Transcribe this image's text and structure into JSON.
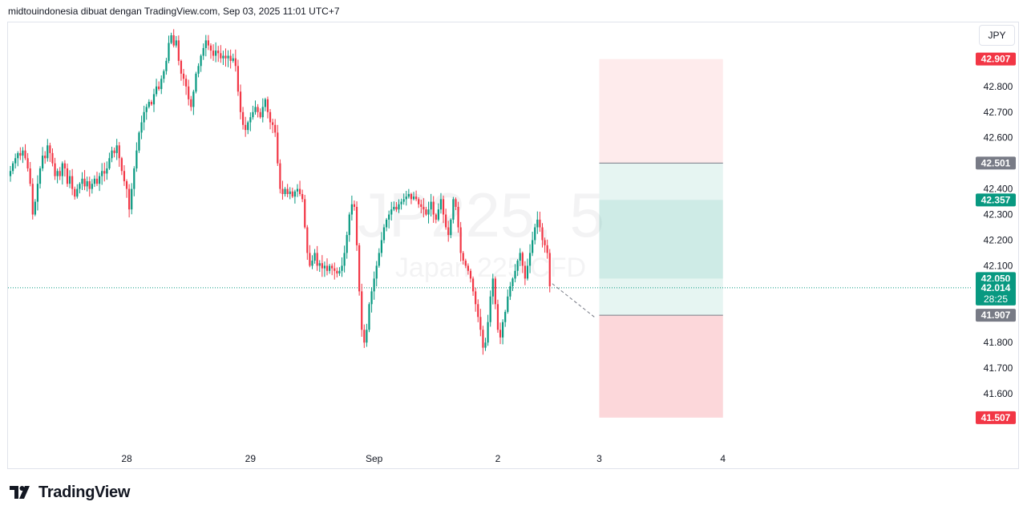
{
  "header": {
    "text": "midtouindonesia dibuat dengan TradingView.com, Sep 03, 2025 11:01 UTC+7"
  },
  "currency": "JPY",
  "watermark": {
    "symbol": "JP225, 5",
    "description": "Japan 225 CFD"
  },
  "brand": {
    "name": "TradingView"
  },
  "colors": {
    "up": "#089981",
    "down": "#f23645",
    "stop_zone": "#f23645",
    "target_zone": "#089981",
    "label_dark": "#787b86"
  },
  "chart_data": {
    "type": "candlestick",
    "title": "",
    "xlabel": "",
    "ylabel": "",
    "ylim": [
      41.4,
      43.05
    ],
    "y_ticks": [
      41.6,
      41.7,
      41.8,
      42.1,
      42.2,
      42.3,
      42.4,
      42.6,
      42.7,
      42.8
    ],
    "y_tick_labels": [
      "41.600",
      "41.700",
      "41.800",
      "42.100",
      "42.200",
      "42.300",
      "42.400",
      "42.600",
      "42.700",
      "42.800"
    ],
    "x_ticks": [
      {
        "label": "28",
        "index": 47
      },
      {
        "label": "29",
        "index": 97
      },
      {
        "label": "Sep",
        "index": 147
      },
      {
        "label": "2",
        "index": 197
      },
      {
        "label": "3",
        "index": 238
      },
      {
        "label": "4",
        "index": 288
      }
    ],
    "close_series": [
      42.47,
      42.5,
      42.52,
      42.54,
      42.53,
      42.55,
      42.52,
      42.48,
      42.42,
      42.3,
      42.35,
      42.42,
      42.48,
      42.53,
      42.52,
      42.57,
      42.54,
      42.5,
      42.45,
      42.47,
      42.45,
      42.5,
      42.48,
      42.42,
      42.45,
      42.4,
      42.37,
      42.4,
      42.42,
      42.44,
      42.41,
      42.43,
      42.4,
      42.42,
      42.44,
      42.42,
      42.45,
      42.47,
      42.46,
      42.48,
      42.52,
      42.55,
      42.54,
      42.57,
      42.52,
      42.47,
      42.43,
      42.4,
      42.32,
      42.4,
      42.48,
      42.55,
      42.62,
      42.66,
      42.7,
      42.72,
      42.74,
      42.73,
      42.77,
      42.8,
      42.79,
      42.83,
      42.86,
      42.9,
      42.97,
      43.0,
      42.96,
      42.98,
      42.9,
      42.85,
      42.83,
      42.8,
      42.75,
      42.72,
      42.78,
      42.85,
      42.88,
      42.92,
      42.95,
      42.98,
      42.96,
      42.94,
      42.92,
      42.94,
      42.93,
      42.91,
      42.92,
      42.91,
      42.92,
      42.9,
      42.91,
      42.88,
      42.78,
      42.7,
      42.65,
      42.63,
      42.66,
      42.68,
      42.7,
      42.72,
      42.7,
      42.68,
      42.72,
      42.75,
      42.7,
      42.66,
      42.65,
      42.62,
      42.5,
      42.4,
      42.38,
      42.4,
      42.38,
      42.39,
      42.37,
      42.39,
      42.4,
      42.38,
      42.36,
      42.25,
      42.15,
      42.1,
      42.12,
      42.15,
      42.1,
      42.11,
      42.09,
      42.1,
      42.08,
      42.1,
      42.09,
      42.08,
      42.07,
      42.08,
      42.1,
      42.15,
      42.22,
      42.3,
      42.34,
      42.33,
      42.18,
      42.0,
      41.85,
      41.8,
      41.85,
      41.95,
      42.0,
      42.05,
      42.1,
      42.15,
      42.2,
      42.25,
      42.28,
      42.3,
      42.32,
      42.33,
      42.32,
      42.34,
      42.35,
      42.36,
      42.37,
      42.38,
      42.36,
      42.37,
      42.36,
      42.34,
      42.33,
      42.32,
      42.3,
      42.32,
      42.35,
      42.3,
      42.28,
      42.32,
      42.36,
      42.3,
      42.25,
      42.22,
      42.28,
      42.36,
      42.33,
      42.25,
      42.15,
      42.12,
      42.1,
      42.08,
      42.05,
      42.0,
      41.95,
      41.9,
      41.85,
      41.78,
      41.8,
      41.88,
      41.98,
      42.05,
      41.95,
      41.85,
      41.82,
      41.88,
      41.92,
      41.98,
      42.02,
      42.05,
      42.08,
      42.12,
      42.15,
      42.1,
      42.05,
      42.1,
      42.15,
      42.2,
      42.25,
      42.28,
      42.25,
      42.2,
      42.18,
      42.15,
      42.02
    ],
    "last_price": 42.014,
    "countdown": "28:25",
    "position": {
      "type": "long",
      "entry": 42.05,
      "upper_target": 42.907,
      "target": 42.501,
      "inner_target": 42.357,
      "stop": 41.907,
      "lower_stop": 41.507,
      "start_index": 238,
      "end_index": 288
    },
    "price_labels": [
      {
        "value": 42.907,
        "text": "42.907",
        "color": "#f23645"
      },
      {
        "value": 42.501,
        "text": "42.501",
        "color": "#787b86"
      },
      {
        "value": 42.357,
        "text": "42.357",
        "color": "#089981"
      },
      {
        "value": 42.05,
        "text": "42.050",
        "color": "#089981"
      },
      {
        "value": 41.907,
        "text": "41.907",
        "color": "#787b86"
      },
      {
        "value": 41.507,
        "text": "41.507",
        "color": "#f23645"
      }
    ]
  }
}
